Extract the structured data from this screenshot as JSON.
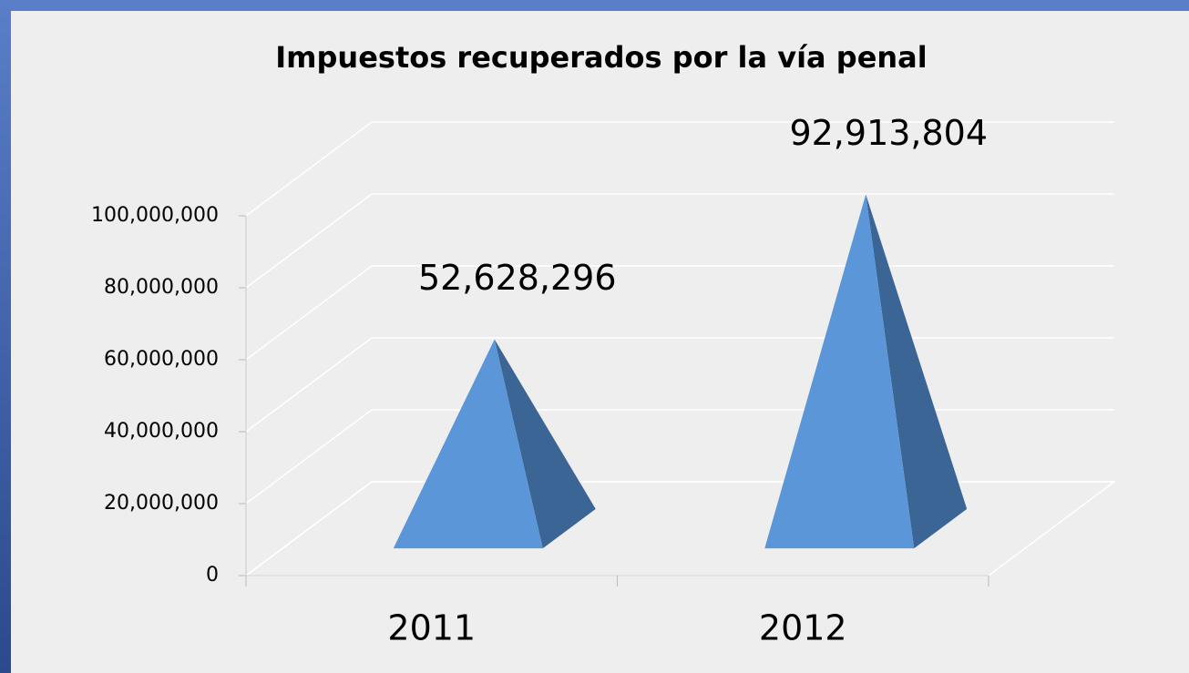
{
  "chart_data": {
    "type": "pyramid",
    "title": "Impuestos recuperados por la vía penal",
    "categories": [
      "2011",
      "2012"
    ],
    "values": [
      52628296,
      92913804
    ],
    "value_labels": [
      "52,628,296",
      "92,913,804"
    ],
    "color": "#5b97d8",
    "ylim": [
      0,
      100000000
    ],
    "yticks": [
      0,
      {
        "value": 20000000,
        "label": "20,000,000"
      },
      {
        "value": 40000000,
        "label": "40,000,000"
      },
      {
        "value": 60000000,
        "label": "60,000,000"
      },
      {
        "value": 80000000,
        "label": "80,000,000"
      },
      {
        "value": 100000000,
        "label": "100,000,000"
      }
    ],
    "grid": true
  }
}
